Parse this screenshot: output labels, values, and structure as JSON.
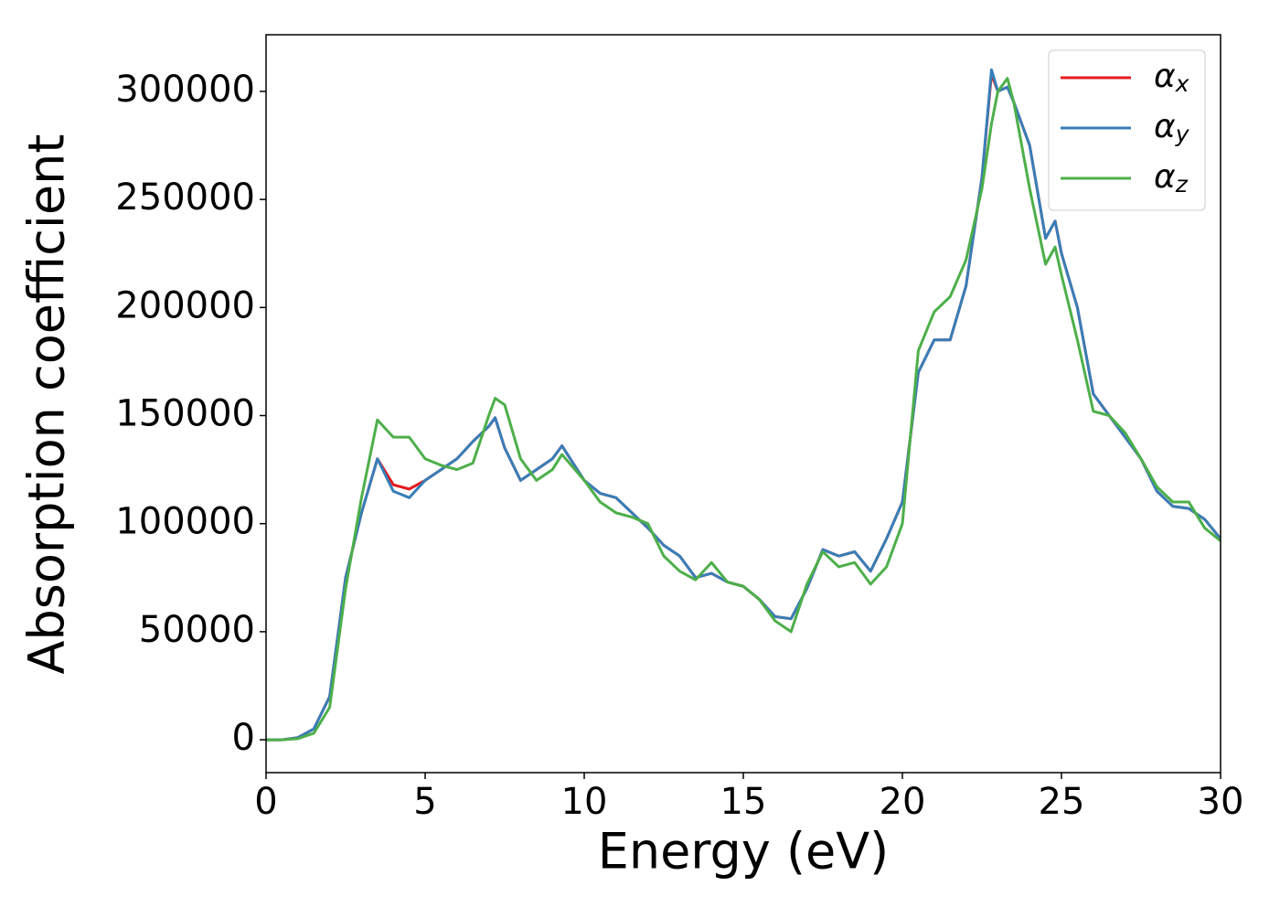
{
  "chart_data": {
    "type": "line",
    "x_label": "Energy (eV)",
    "y_label": "Absorption coefficient",
    "x": [
      0,
      0.5,
      1,
      1.5,
      2,
      2.5,
      3,
      3.5,
      4,
      4.5,
      5,
      5.5,
      6,
      6.5,
      7,
      7.2,
      7.5,
      8,
      8.5,
      9,
      9.3,
      10,
      10.5,
      11,
      11.5,
      12,
      12.5,
      13,
      13.5,
      14,
      14.5,
      15,
      15.5,
      16,
      16.5,
      17,
      17.5,
      18,
      18.5,
      19,
      19.5,
      20,
      20.5,
      21,
      21.5,
      22,
      22.5,
      22.8,
      23,
      23.3,
      23.5,
      24,
      24.5,
      24.8,
      25,
      25.5,
      26,
      26.5,
      27,
      27.5,
      28,
      28.5,
      29,
      29.5,
      30
    ],
    "series": [
      {
        "name": "αx",
        "color": "#e41a1c",
        "values": [
          0,
          0,
          1000,
          5000,
          20000,
          75000,
          105000,
          130000,
          118000,
          116000,
          120000,
          125000,
          130000,
          138000,
          145000,
          149000,
          135000,
          120000,
          125000,
          130000,
          136000,
          120000,
          114000,
          112000,
          105000,
          98000,
          90000,
          85000,
          75000,
          77000,
          73000,
          71000,
          65000,
          57000,
          56000,
          70000,
          88000,
          85000,
          87000,
          78000,
          93000,
          110000,
          170000,
          185000,
          185000,
          210000,
          260000,
          308000,
          300000,
          302000,
          295000,
          275000,
          232000,
          240000,
          225000,
          200000,
          160000,
          150000,
          140000,
          130000,
          115000,
          108000,
          107000,
          102000,
          93000
        ]
      },
      {
        "name": "αy",
        "color": "#377eb8",
        "values": [
          0,
          0,
          1000,
          5000,
          20000,
          75000,
          105000,
          130000,
          115000,
          112000,
          120000,
          125000,
          130000,
          138000,
          145000,
          149000,
          135000,
          120000,
          125000,
          130000,
          136000,
          120000,
          114000,
          112000,
          105000,
          98000,
          90000,
          85000,
          75000,
          77000,
          73000,
          71000,
          65000,
          57000,
          56000,
          70000,
          88000,
          85000,
          87000,
          78000,
          93000,
          110000,
          170000,
          185000,
          185000,
          210000,
          260000,
          310000,
          300000,
          302000,
          295000,
          275000,
          232000,
          240000,
          225000,
          200000,
          160000,
          150000,
          140000,
          130000,
          115000,
          108000,
          107000,
          102000,
          93000
        ]
      },
      {
        "name": "αz",
        "color": "#4daf4a",
        "values": [
          0,
          0,
          500,
          3000,
          15000,
          70000,
          112000,
          148000,
          140000,
          140000,
          130000,
          127000,
          125000,
          128000,
          150000,
          158000,
          155000,
          130000,
          120000,
          125000,
          132000,
          120000,
          110000,
          105000,
          103000,
          100000,
          85000,
          78000,
          74000,
          82000,
          73000,
          71000,
          65000,
          55000,
          50000,
          72000,
          87000,
          80000,
          82000,
          72000,
          80000,
          100000,
          180000,
          198000,
          205000,
          222000,
          255000,
          285000,
          300000,
          306000,
          295000,
          255000,
          220000,
          228000,
          215000,
          185000,
          152000,
          150000,
          142000,
          130000,
          117000,
          110000,
          110000,
          98000,
          92000
        ]
      }
    ],
    "xlim": [
      0,
      30
    ],
    "xticks": [
      0,
      5,
      10,
      15,
      20,
      25,
      30
    ],
    "ylim": [
      -15200,
      326200
    ],
    "yticks": [
      0,
      50000,
      100000,
      150000,
      200000,
      250000,
      300000
    ],
    "grid": false,
    "legend": "upper right"
  }
}
